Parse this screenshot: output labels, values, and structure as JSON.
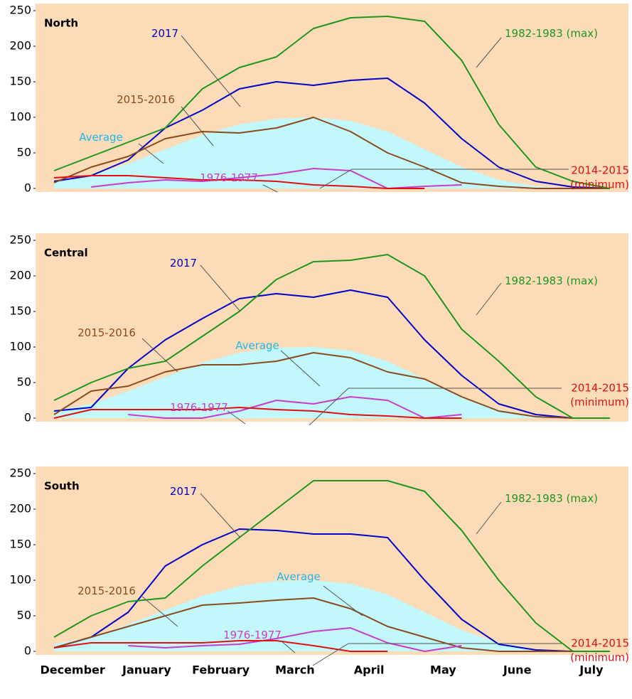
{
  "chart_data": [
    {
      "type": "line",
      "title": "North",
      "ylim": [
        -5,
        260
      ],
      "yticks": [
        0,
        50,
        100,
        150,
        200,
        250
      ],
      "background": "#fcdcb8",
      "series": [
        {
          "name": "Average",
          "color": "#c2f7fb",
          "label_color": "#1fb6ea",
          "style": "area",
          "values": [
            10,
            18,
            35,
            55,
            75,
            90,
            98,
            100,
            95,
            80,
            55,
            30,
            12,
            3,
            0,
            0
          ]
        },
        {
          "name": "2017",
          "color": "#0000c8",
          "values": [
            10,
            18,
            40,
            85,
            110,
            140,
            150,
            145,
            152,
            155,
            120,
            70,
            30,
            10,
            2,
            0
          ]
        },
        {
          "name": "2015-2016",
          "color": "#8b4a1c",
          "values": [
            8,
            30,
            45,
            70,
            80,
            78,
            85,
            100,
            80,
            50,
            30,
            8,
            3,
            0,
            0,
            0
          ]
        },
        {
          "name": "1976-1977",
          "color": "#c83cc8",
          "values": [
            null,
            2,
            8,
            12,
            10,
            15,
            20,
            28,
            25,
            0,
            3,
            5,
            null,
            null,
            null,
            null
          ]
        },
        {
          "name": "1982-1983",
          "note": "(max)",
          "color": "#1e961e",
          "values": [
            25,
            45,
            65,
            85,
            140,
            170,
            185,
            225,
            240,
            242,
            235,
            180,
            90,
            30,
            10,
            0
          ]
        },
        {
          "name": "2014-2015",
          "note": "(minimum)",
          "color": "#e01010",
          "values": [
            15,
            18,
            18,
            15,
            12,
            12,
            10,
            5,
            3,
            0,
            0,
            null,
            null,
            null,
            null,
            null
          ]
        }
      ]
    },
    {
      "type": "line",
      "title": "Central",
      "ylim": [
        -5,
        260
      ],
      "yticks": [
        0,
        50,
        100,
        150,
        200,
        250
      ],
      "background": "#fcdcb8",
      "series": [
        {
          "name": "Average",
          "color": "#c2f7fb",
          "label_color": "#1fb6ea",
          "style": "area",
          "values": [
            10,
            20,
            38,
            58,
            78,
            92,
            99,
            100,
            95,
            80,
            55,
            30,
            12,
            3,
            0,
            0
          ]
        },
        {
          "name": "2017",
          "color": "#0000c8",
          "values": [
            10,
            15,
            70,
            110,
            140,
            168,
            175,
            170,
            180,
            170,
            110,
            60,
            20,
            5,
            0,
            0
          ]
        },
        {
          "name": "2015-2016",
          "color": "#8b4a1c",
          "values": [
            5,
            38,
            45,
            65,
            75,
            75,
            80,
            92,
            85,
            65,
            55,
            30,
            10,
            2,
            0,
            0
          ]
        },
        {
          "name": "1976-1977",
          "color": "#c83cc8",
          "values": [
            null,
            null,
            5,
            0,
            0,
            10,
            25,
            20,
            30,
            25,
            0,
            5,
            null,
            null,
            null,
            null
          ]
        },
        {
          "name": "1982-1983",
          "note": "(max)",
          "color": "#1e961e",
          "values": [
            25,
            50,
            70,
            80,
            115,
            150,
            195,
            220,
            222,
            230,
            200,
            125,
            80,
            30,
            0,
            0
          ]
        },
        {
          "name": "2014-2015",
          "note": "(minimum)",
          "color": "#e01010",
          "values": [
            0,
            12,
            12,
            12,
            12,
            15,
            12,
            10,
            5,
            3,
            0,
            0,
            null,
            null,
            null,
            null
          ]
        }
      ]
    },
    {
      "type": "line",
      "title": "South",
      "ylim": [
        -5,
        260
      ],
      "yticks": [
        0,
        50,
        100,
        150,
        200,
        250
      ],
      "background": "#fcdcb8",
      "categories": [
        "December",
        null,
        "January",
        null,
        "February",
        null,
        "March",
        null,
        "April",
        null,
        "May",
        null,
        "June",
        null,
        "July",
        null
      ],
      "series": [
        {
          "name": "Average",
          "color": "#c2f7fb",
          "label_color": "#1fb6ea",
          "style": "area",
          "values": [
            10,
            20,
            38,
            58,
            78,
            92,
            99,
            100,
            95,
            80,
            55,
            30,
            12,
            3,
            0,
            0
          ]
        },
        {
          "name": "2017",
          "color": "#0000c8",
          "values": [
            5,
            20,
            55,
            120,
            150,
            172,
            170,
            165,
            165,
            160,
            100,
            45,
            10,
            2,
            0,
            0
          ]
        },
        {
          "name": "2015-2016",
          "color": "#8b4a1c",
          "values": [
            5,
            20,
            35,
            50,
            65,
            68,
            72,
            75,
            60,
            35,
            20,
            5,
            0,
            0,
            0,
            0
          ]
        },
        {
          "name": "1976-1977",
          "color": "#c83cc8",
          "values": [
            null,
            null,
            8,
            5,
            8,
            10,
            18,
            28,
            33,
            12,
            0,
            8,
            null,
            null,
            null,
            null
          ]
        },
        {
          "name": "1982-1983",
          "note": "(max)",
          "color": "#1e961e",
          "values": [
            20,
            50,
            70,
            75,
            120,
            160,
            200,
            240,
            240,
            240,
            225,
            170,
            100,
            40,
            0,
            0
          ]
        },
        {
          "name": "2014-2015",
          "note": "(minimum)",
          "color": "#e01010",
          "values": [
            5,
            12,
            12,
            12,
            12,
            15,
            15,
            8,
            0,
            0,
            null,
            null,
            null,
            null,
            null,
            null
          ]
        }
      ]
    }
  ]
}
